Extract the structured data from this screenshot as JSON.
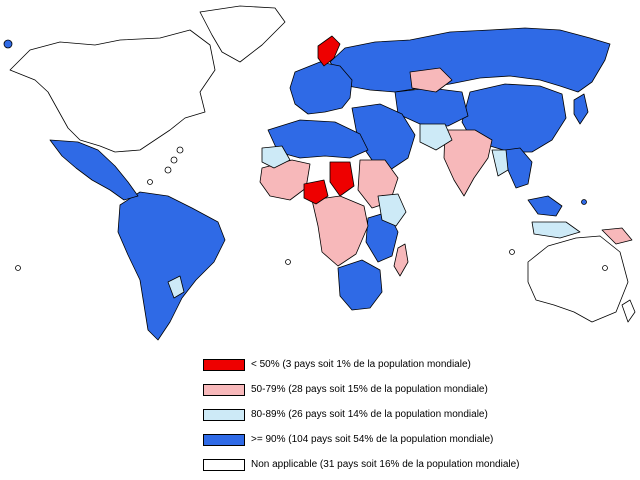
{
  "colors": {
    "below_50": "#ee0000",
    "r50_79": "#f7b8ba",
    "r80_89": "#cdeaf7",
    "above_90": "#2f6ae6",
    "not_applicable": "#ffffff",
    "ocean": "#ffffff",
    "border": "#000000"
  },
  "legend": [
    {
      "label": "< 50% (3 pays soit 1% de la population mondiale)",
      "color": "#ee0000"
    },
    {
      "label": "50-79% (28 pays soit 15% de la population mondiale)",
      "color": "#f7b8ba"
    },
    {
      "label": "80-89% (26 pays soit 14% de la population mondiale)",
      "color": "#cdeaf7"
    },
    {
      "label": ">= 90% (104 pays soit 54% de la population mondiale)",
      "color": "#2f6ae6"
    },
    {
      "label": "Non applicable (31 pays soit 16% de la population mondiale)",
      "color": "#ffffff"
    }
  ]
}
